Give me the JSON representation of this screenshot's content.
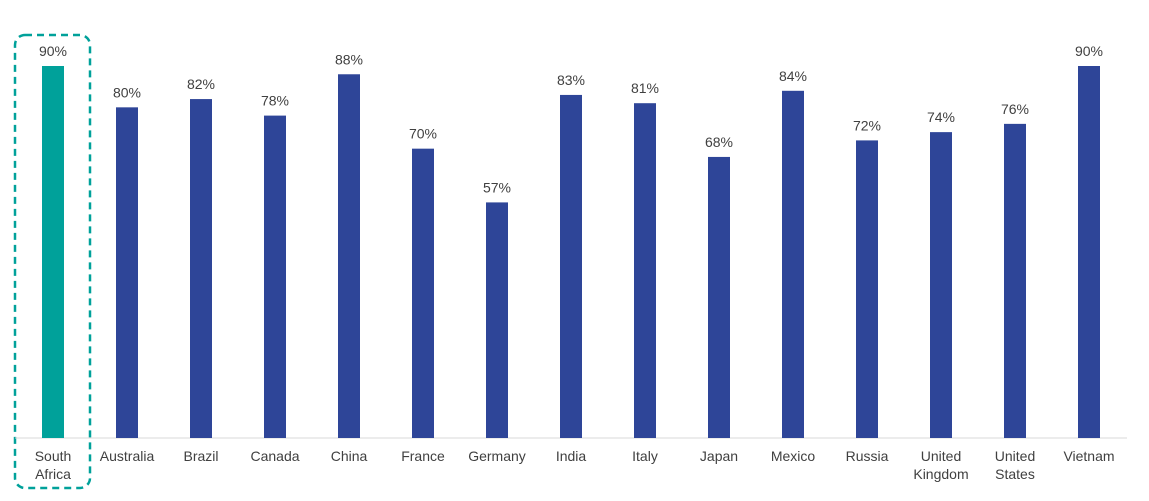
{
  "chart_data": {
    "type": "bar",
    "categories": [
      "South Africa",
      "Australia",
      "Brazil",
      "Canada",
      "China",
      "France",
      "Germany",
      "India",
      "Italy",
      "Japan",
      "Mexico",
      "Russia",
      "United Kingdom",
      "United States",
      "Vietnam"
    ],
    "values": [
      90,
      80,
      82,
      78,
      88,
      70,
      57,
      83,
      81,
      68,
      84,
      72,
      74,
      76,
      90
    ],
    "value_labels": [
      "90%",
      "80%",
      "82%",
      "78%",
      "88%",
      "70%",
      "57%",
      "83%",
      "81%",
      "68%",
      "84%",
      "72%",
      "74%",
      "76%",
      "90%"
    ],
    "colors": [
      "#00a19a",
      "#2e4598",
      "#2e4598",
      "#2e4598",
      "#2e4598",
      "#2e4598",
      "#2e4598",
      "#2e4598",
      "#2e4598",
      "#2e4598",
      "#2e4598",
      "#2e4598",
      "#2e4598",
      "#2e4598",
      "#2e4598"
    ]
  }
}
